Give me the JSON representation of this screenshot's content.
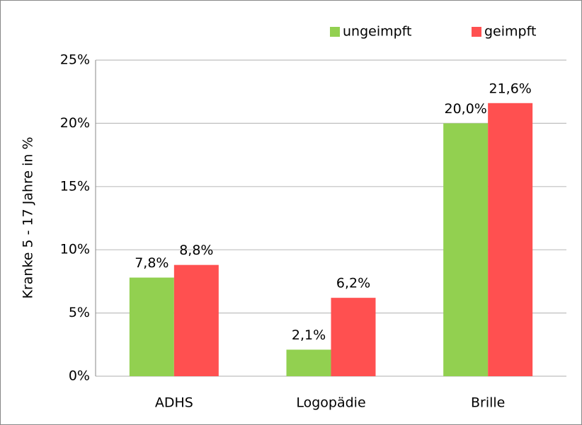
{
  "chart_data": {
    "type": "bar",
    "categories": [
      "ADHS",
      "Logopädie",
      "Brille"
    ],
    "series": [
      {
        "name": "ungeimpft",
        "color": "#92d050",
        "values": [
          7.8,
          2.1,
          20.0
        ],
        "value_labels": [
          "7,8%",
          "2,1%",
          "20,0%"
        ]
      },
      {
        "name": "geimpft",
        "color": "#ff5050",
        "values": [
          8.8,
          6.2,
          21.6
        ],
        "value_labels": [
          "8,8%",
          "6,2%",
          "21,6%"
        ]
      }
    ],
    "y_label": "Kranke 5 - 17 Jahre in %",
    "ylim": [
      0,
      25
    ],
    "yticks": [
      {
        "value": 0,
        "label": "0%"
      },
      {
        "value": 5,
        "label": "5%"
      },
      {
        "value": 10,
        "label": "10%"
      },
      {
        "value": 15,
        "label": "15%"
      },
      {
        "value": 20,
        "label": "20%"
      },
      {
        "value": 25,
        "label": "25%"
      }
    ],
    "grid": true,
    "legend": "top-right"
  }
}
